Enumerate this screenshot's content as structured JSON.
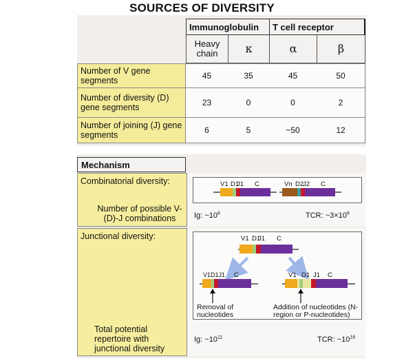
{
  "title": "SOURCES OF DIVERSITY",
  "groups": {
    "immunoglobulin": "Immunoglobulin",
    "tcr": "T cell receptor"
  },
  "columns": [
    "Heavy chain",
    "κ",
    "α",
    "β"
  ],
  "rows": [
    {
      "label": "Number of V gene segments",
      "values": [
        "45",
        "35",
        "45",
        "50"
      ]
    },
    {
      "label": "Number of diversity (D) gene segments",
      "values": [
        "23",
        "0",
        "0",
        "2"
      ]
    },
    {
      "label": "Number of joining (J) gene segments",
      "values": [
        "6",
        "5",
        "~50",
        "12"
      ]
    }
  ],
  "mechanism": {
    "title": "Mechanism",
    "combinatorial": {
      "label": "Combinatorial diversity:",
      "sublabel": "Number of possible V-(D)-J combinations",
      "ig_prefix": "Ig: ~10",
      "ig_exp": "6",
      "tcr_prefix": "TCR: ~3×10",
      "tcr_exp": "6",
      "ig_segments": {
        "v": "V1",
        "d": "D1",
        "j": "J1",
        "c": "C"
      },
      "tcr_segments": {
        "v": "Vn",
        "d": "D2",
        "j": "J2",
        "c": "C"
      }
    },
    "junctional": {
      "label": "Junctional diversity:",
      "removal": "Removal of nucleotides",
      "addition": "Addition of nucleotides (N-region or P-nucleotides)",
      "top_segments": {
        "v": "V1",
        "d": "D1",
        "j": "J1",
        "c": "C"
      },
      "left_segments": {
        "vdj": "V1D1J1",
        "c": "C"
      },
      "right_segments": {
        "v": "V1",
        "d": "D1",
        "j": "J1",
        "c": "C"
      }
    },
    "total": {
      "label": "Total potential repertoire with junctional diversity",
      "ig_prefix": "Ig: ~10",
      "ig_exp": "11",
      "tcr_prefix": "TCR: ~10",
      "tcr_exp": "16"
    }
  },
  "colors": {
    "v_segment": "#f0a81c",
    "d_segment": "#9fcd7a",
    "j_segment": "#c4172f",
    "c_segment": "#6b2f9b",
    "vn_segment": "#9a5a1e",
    "d2_segment": "#3aa09a",
    "arrow": "#9fb6e8",
    "label_yellow": "#f4ec9a"
  }
}
